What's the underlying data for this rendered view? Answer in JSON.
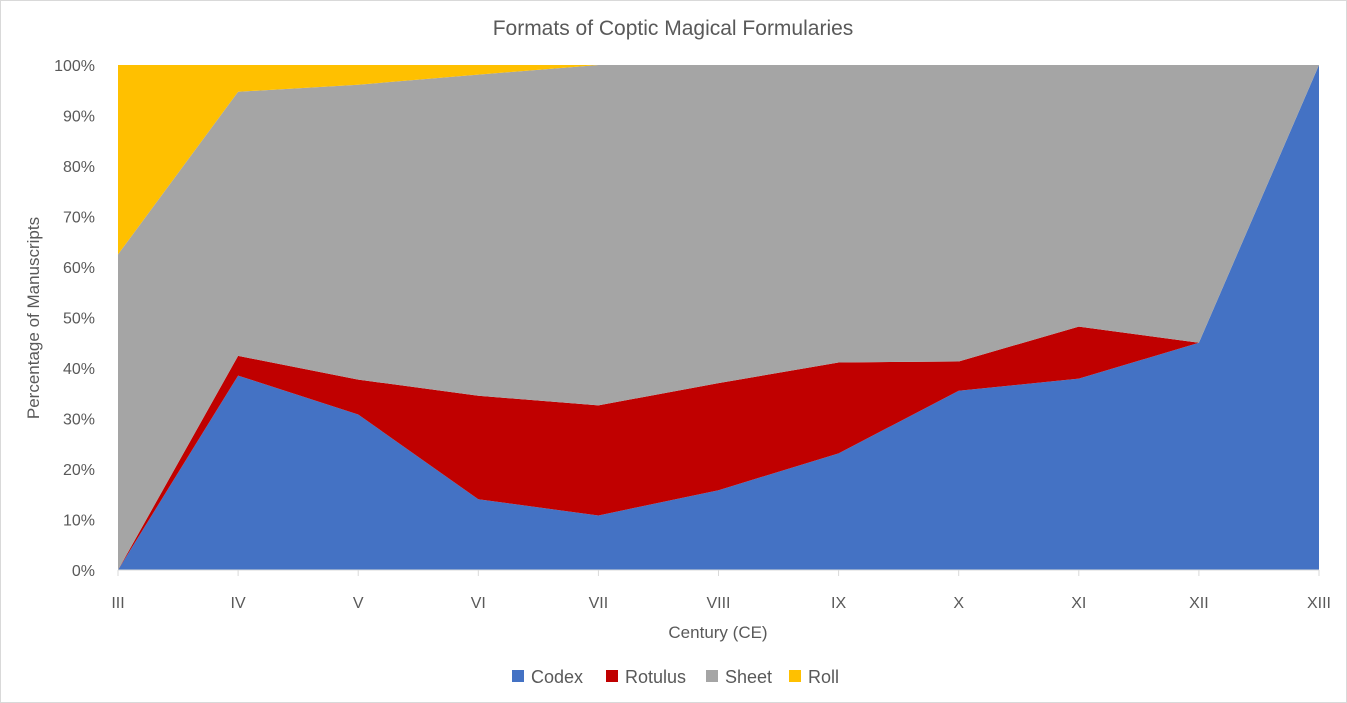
{
  "chart_data": {
    "type": "area",
    "stacked": "percent",
    "title": "Formats of Coptic Magical Formularies",
    "xlabel": "Century (CE)",
    "ylabel": "Percentage of Manuscripts",
    "categories": [
      "III",
      "IV",
      "V",
      "VI",
      "VII",
      "VIII",
      "IX",
      "X",
      "XI",
      "XII",
      "XIII"
    ],
    "ylim": [
      0,
      100
    ],
    "yticks": [
      "0%",
      "10%",
      "20%",
      "30%",
      "40%",
      "50%",
      "60%",
      "70%",
      "80%",
      "90%",
      "100%"
    ],
    "grid": false,
    "legend_position": "bottom",
    "series": [
      {
        "name": "Codex",
        "color": "#4472C4",
        "values": [
          0,
          38.5,
          30.8,
          14.0,
          10.8,
          15.8,
          23.1,
          35.5,
          37.9,
          45.0,
          100
        ]
      },
      {
        "name": "Rotulus",
        "color": "#C00000",
        "values": [
          0,
          3.9,
          6.9,
          20.5,
          21.8,
          21.2,
          18.0,
          5.8,
          10.3,
          0,
          0
        ]
      },
      {
        "name": "Sheet",
        "color": "#A5A5A5",
        "values": [
          62.5,
          52.3,
          58.4,
          63.6,
          67.4,
          63.0,
          58.9,
          58.7,
          51.8,
          55.0,
          0
        ]
      },
      {
        "name": "Roll",
        "color": "#FFC000",
        "values": [
          37.5,
          5.3,
          3.9,
          1.9,
          0,
          0,
          0,
          0,
          0,
          0,
          0
        ]
      }
    ]
  }
}
